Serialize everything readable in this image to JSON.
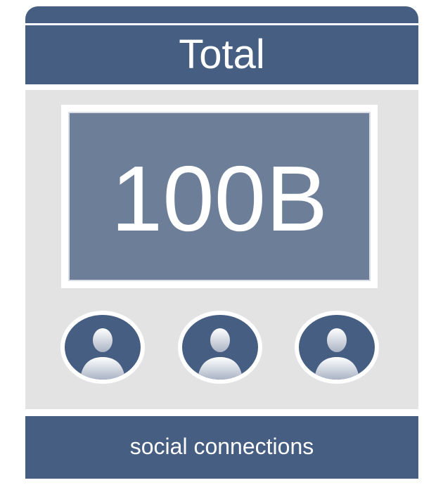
{
  "header": {
    "title": "Total"
  },
  "stat": {
    "value": "100B"
  },
  "avatars": [
    {
      "icon": "user-icon"
    },
    {
      "icon": "user-icon"
    },
    {
      "icon": "user-icon"
    }
  ],
  "footer": {
    "label": "social connections"
  },
  "colors": {
    "primary": "#465e81",
    "value_box": "#6c7e98",
    "panel": "#e3e3e3"
  }
}
